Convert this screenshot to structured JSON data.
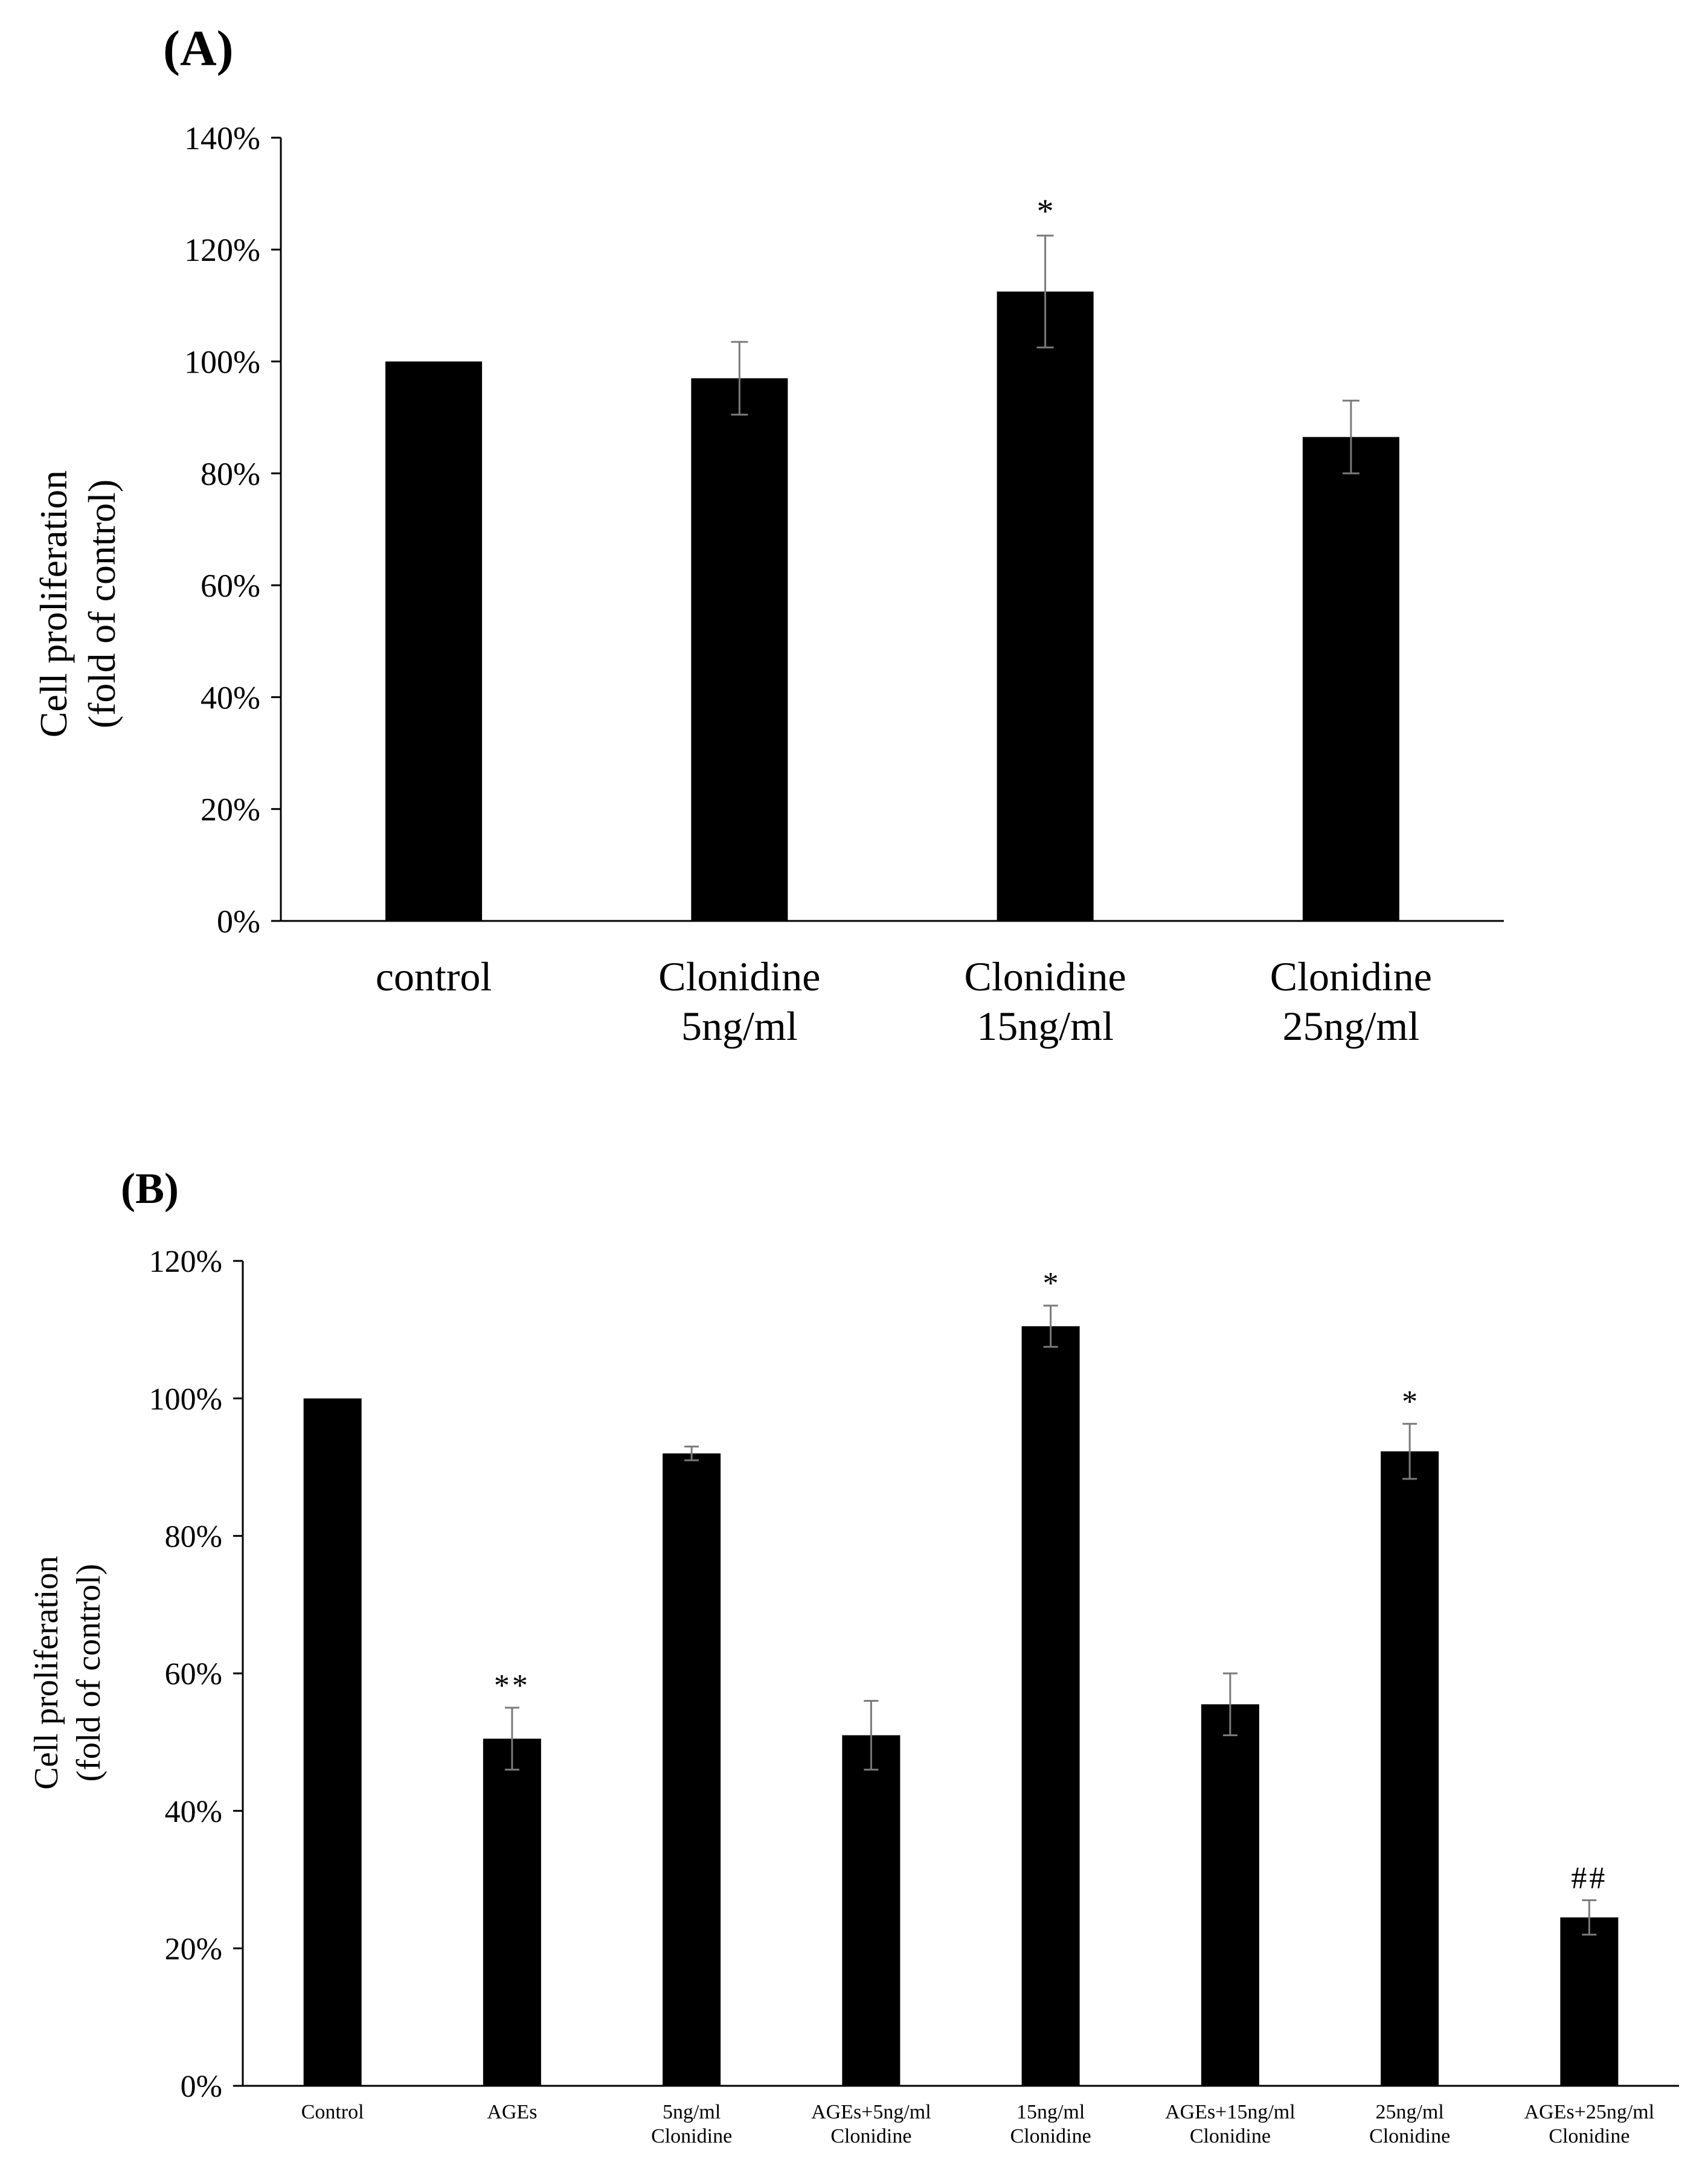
{
  "chart_data": [
    {
      "type": "bar",
      "panel_label": "(A)",
      "ylabel": [
        "Cell proliferation",
        "(fold of control)"
      ],
      "yticks": [
        "0%",
        "20%",
        "40%",
        "60%",
        "80%",
        "100%",
        "120%",
        "140%"
      ],
      "ylim": [
        0,
        140
      ],
      "categories": [
        [
          "control"
        ],
        [
          "Clonidine",
          "5ng/ml"
        ],
        [
          "Clonidine",
          "15ng/ml"
        ],
        [
          "Clonidine",
          "25ng/ml"
        ]
      ],
      "values": [
        100,
        97,
        112.5,
        86.5
      ],
      "errors": [
        0,
        6.5,
        10,
        6.5
      ],
      "annotations": [
        "",
        "",
        "*",
        ""
      ],
      "bar_color": "#000000",
      "grid": false,
      "legend": "none"
    },
    {
      "type": "bar",
      "panel_label": "(B)",
      "ylabel": [
        "Cell proliferation",
        "(fold of control)"
      ],
      "yticks": [
        "0%",
        "20%",
        "40%",
        "60%",
        "80%",
        "100%",
        "120%"
      ],
      "ylim": [
        0,
        120
      ],
      "categories": [
        [
          "Control"
        ],
        [
          "AGEs"
        ],
        [
          "5ng/ml",
          "Clonidine"
        ],
        [
          "AGEs+5ng/ml",
          "Clonidine"
        ],
        [
          "15ng/ml",
          "Clonidine"
        ],
        [
          "AGEs+15ng/ml",
          "Clonidine"
        ],
        [
          "25ng/ml",
          "Clonidine"
        ],
        [
          "AGEs+25ng/ml",
          "Clonidine"
        ]
      ],
      "values": [
        100,
        50.5,
        92,
        51,
        110.5,
        55.5,
        92.3,
        24.5
      ],
      "errors": [
        0,
        4.5,
        1,
        5,
        3,
        4.5,
        4,
        2.5
      ],
      "annotations": [
        "",
        "**",
        "",
        "",
        "*",
        "",
        "*",
        "##"
      ],
      "bar_color": "#000000",
      "grid": false,
      "legend": "none"
    }
  ]
}
